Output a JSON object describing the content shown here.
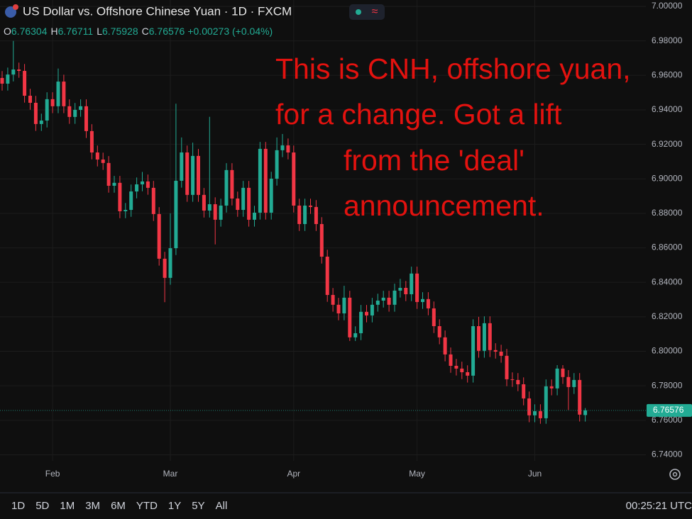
{
  "chart_data": {
    "type": "candlestick",
    "title": "US Dollar vs. Offshore Chinese Yuan · 1D · FXCM",
    "ohlc_labels": [
      "O",
      "H",
      "L",
      "C"
    ],
    "change": "+0.00273 (+0.04%)",
    "annotation": [
      "This is CNH, offshore yuan,",
      "for a change. Got a lift",
      "from the 'deal'",
      "announcement."
    ],
    "categories": [
      null,
      null,
      null,
      null,
      null,
      null,
      null,
      null,
      null,
      "Feb",
      null,
      null,
      null,
      null,
      null,
      null,
      null,
      null,
      null,
      null,
      null,
      null,
      null,
      null,
      null,
      null,
      null,
      null,
      null,
      null,
      "Mar",
      null,
      null,
      null,
      null,
      null,
      null,
      null,
      null,
      null,
      null,
      null,
      null,
      null,
      null,
      null,
      null,
      null,
      null,
      null,
      null,
      null,
      "Apr",
      null,
      null,
      null,
      null,
      null,
      null,
      null,
      null,
      null,
      null,
      null,
      null,
      null,
      null,
      null,
      null,
      null,
      null,
      null,
      null,
      null,
      "May",
      null,
      null,
      null,
      null,
      null,
      null,
      null,
      null,
      null,
      null,
      null,
      null,
      null,
      null,
      null,
      null,
      null,
      null,
      null,
      null,
      "Jun",
      null,
      null,
      null,
      null,
      null,
      null,
      null,
      null,
      null
    ],
    "open": [
      6.9585,
      6.9552,
      6.9605,
      6.9634,
      6.9626,
      6.9482,
      6.9441,
      6.9318,
      6.9338,
      6.9462,
      6.9421,
      6.9564,
      6.9421,
      6.9359,
      6.94,
      6.9421,
      6.9277,
      6.9153,
      6.9112,
      6.9092,
      6.896,
      6.8977,
      6.8812,
      6.882,
      6.8927,
      6.8968,
      6.8985,
      6.8948,
      6.8796,
      6.8537,
      6.8426,
      6.8598,
      6.8989,
      6.9153,
      6.8907,
      6.9133,
      6.8907,
      6.8816,
      6.8853,
      6.8763,
      6.8845,
      6.9051,
      6.8886,
      6.882,
      6.8948,
      6.8763,
      6.8804,
      6.9174,
      6.8804,
      6.9001,
      6.9166,
      6.9194,
      6.9153,
      6.8845,
      6.8738,
      6.8845,
      6.8837,
      6.8738,
      6.8549,
      6.8327,
      6.827,
      6.822,
      6.8311,
      6.8081,
      6.8105,
      6.8229,
      6.8208,
      6.827,
      6.8294,
      6.8311,
      6.827,
      6.8352,
      6.8368,
      6.8331,
      6.8451,
      6.8286,
      6.8303,
      6.8249,
      6.8146,
      6.8081,
      6.7982,
      6.7916,
      6.79,
      6.7879,
      6.7859,
      6.8146,
      6.8003,
      6.8163,
      6.8007,
      6.7998,
      6.7974,
      6.7838,
      6.7834,
      6.7809,
      6.7727,
      6.7629,
      6.7653,
      6.7612,
      6.7797,
      6.7785,
      6.79,
      6.7851,
      6.7793,
      6.7834,
      6.76304
    ],
    "high": [
      6.9625,
      6.9645,
      6.98,
      6.9674,
      6.9666,
      6.9522,
      6.9481,
      6.9378,
      6.9502,
      6.9502,
      6.964,
      6.9604,
      6.9461,
      6.944,
      6.9461,
      6.9461,
      6.9317,
      6.9193,
      6.9152,
      6.9132,
      6.9017,
      6.9017,
      6.886,
      6.8967,
      6.9008,
      6.904,
      6.9025,
      6.8988,
      6.8836,
      6.8577,
      6.88,
      6.9436,
      6.924,
      6.9193,
      6.921,
      6.9173,
      6.8947,
      6.936,
      6.8893,
      6.8885,
      6.9091,
      6.9091,
      6.8926,
      6.8988,
      6.8988,
      6.8844,
      6.9214,
      6.9214,
      6.9041,
      6.924,
      6.926,
      6.9234,
      6.9193,
      6.8885,
      6.8885,
      6.8885,
      6.8877,
      6.8778,
      6.8589,
      6.8367,
      6.831,
      6.838,
      6.8351,
      6.8145,
      6.8269,
      6.8269,
      6.831,
      6.8334,
      6.8351,
      6.8351,
      6.8392,
      6.842,
      6.8408,
      6.8491,
      6.8491,
      6.8343,
      6.8343,
      6.8289,
      6.8186,
      6.8121,
      6.8022,
      6.7956,
      6.794,
      6.7919,
      6.8186,
      6.82,
      6.8203,
      6.8203,
      6.8047,
      6.8038,
      6.8014,
      6.7878,
      6.7874,
      6.7849,
      6.7767,
      6.7693,
      6.7693,
      6.7837,
      6.7837,
      6.792,
      6.792,
      6.7891,
      6.7874,
      6.7874,
      6.76711
    ],
    "low": [
      6.9512,
      6.9512,
      6.9565,
      6.9586,
      6.9442,
      6.9401,
      6.9278,
      6.9278,
      6.9298,
      6.9381,
      6.9381,
      6.9381,
      6.9319,
      6.9319,
      6.936,
      6.9237,
      6.9113,
      6.9072,
      6.9052,
      6.892,
      6.892,
      6.8772,
      6.8772,
      6.878,
      6.8887,
      6.8928,
      6.8908,
      6.8756,
      6.8497,
      6.8285,
      6.8386,
      6.8558,
      6.8949,
      6.8867,
      6.8867,
      6.8867,
      6.8776,
      6.8776,
      6.862,
      6.8723,
      6.8805,
      6.8846,
      6.878,
      6.878,
      6.8723,
      6.8723,
      6.8764,
      6.8764,
      6.8764,
      6.8961,
      6.9126,
      6.9113,
      6.8805,
      6.8698,
      6.8698,
      6.8797,
      6.8698,
      6.8509,
      6.8287,
      6.823,
      6.818,
      6.818,
      6.806,
      6.806,
      6.8065,
      6.8168,
      6.8168,
      6.823,
      6.8254,
      6.823,
      6.823,
      6.8312,
      6.8291,
      6.8291,
      6.8246,
      6.8246,
      6.8209,
      6.8106,
      6.8041,
      6.7942,
      6.7876,
      6.786,
      6.7839,
      6.7819,
      6.7819,
      6.7963,
      6.7963,
      6.7967,
      6.7958,
      6.7934,
      6.7798,
      6.7794,
      6.7769,
      6.7687,
      6.7589,
      6.7589,
      6.758,
      6.758,
      6.7745,
      6.7745,
      6.7811,
      6.766,
      6.7753,
      6.7593,
      6.75928
    ],
    "close": [
      6.9552,
      6.9605,
      6.9634,
      6.9626,
      6.9482,
      6.9441,
      6.9318,
      6.9338,
      6.9462,
      6.9421,
      6.9564,
      6.9421,
      6.9359,
      6.94,
      6.9421,
      6.9277,
      6.9153,
      6.9112,
      6.9092,
      6.896,
      6.8977,
      6.8812,
      6.882,
      6.8927,
      6.8968,
      6.8985,
      6.8948,
      6.8796,
      6.8537,
      6.8426,
      6.8598,
      6.8989,
      6.9153,
      6.8907,
      6.9133,
      6.8907,
      6.8816,
      6.8853,
      6.8763,
      6.8845,
      6.9051,
      6.8886,
      6.882,
      6.8948,
      6.8763,
      6.8804,
      6.9174,
      6.8804,
      6.9001,
      6.9166,
      6.9194,
      6.9153,
      6.8845,
      6.8738,
      6.8845,
      6.8837,
      6.8738,
      6.8549,
      6.8327,
      6.827,
      6.822,
      6.8311,
      6.8081,
      6.8105,
      6.8229,
      6.8208,
      6.827,
      6.8294,
      6.8311,
      6.827,
      6.8352,
      6.8368,
      6.8331,
      6.8451,
      6.8286,
      6.8303,
      6.8249,
      6.8146,
      6.8081,
      6.7982,
      6.7916,
      6.79,
      6.7879,
      6.7859,
      6.8146,
      6.8003,
      6.8163,
      6.8007,
      6.7998,
      6.7974,
      6.7838,
      6.7834,
      6.7809,
      6.7727,
      6.7629,
      6.7653,
      6.7612,
      6.7797,
      6.7785,
      6.79,
      6.7851,
      6.7793,
      6.7834,
      6.7633,
      6.76576
    ],
    "up_color": "#22ab94",
    "down_color": "#f23645",
    "ylim": [
      6.7365,
      7.0037
    ],
    "yticks": [
      {
        "value": 6.74,
        "label": "6.74000"
      },
      {
        "value": 6.76,
        "label": "6.76000"
      },
      {
        "value": 6.78,
        "label": "6.78000"
      },
      {
        "value": 6.8,
        "label": "6.80000"
      },
      {
        "value": 6.82,
        "label": "6.82000"
      },
      {
        "value": 6.84,
        "label": "6.84000"
      },
      {
        "value": 6.86,
        "label": "6.86000"
      },
      {
        "value": 6.88,
        "label": "6.88000"
      },
      {
        "value": 6.9,
        "label": "6.90000"
      },
      {
        "value": 6.92,
        "label": "6.92000"
      },
      {
        "value": 6.94,
        "label": "6.94000"
      },
      {
        "value": 6.96,
        "label": "6.96000"
      },
      {
        "value": 6.98,
        "label": "6.98000"
      },
      {
        "value": 7,
        "label": "7.00000"
      }
    ],
    "grid": true
  },
  "ui": {
    "ranges": [
      "1D",
      "5D",
      "1M",
      "3M",
      "6M",
      "YTD",
      "1Y",
      "5Y",
      "All"
    ],
    "clock": "00:25:21 UTC"
  }
}
